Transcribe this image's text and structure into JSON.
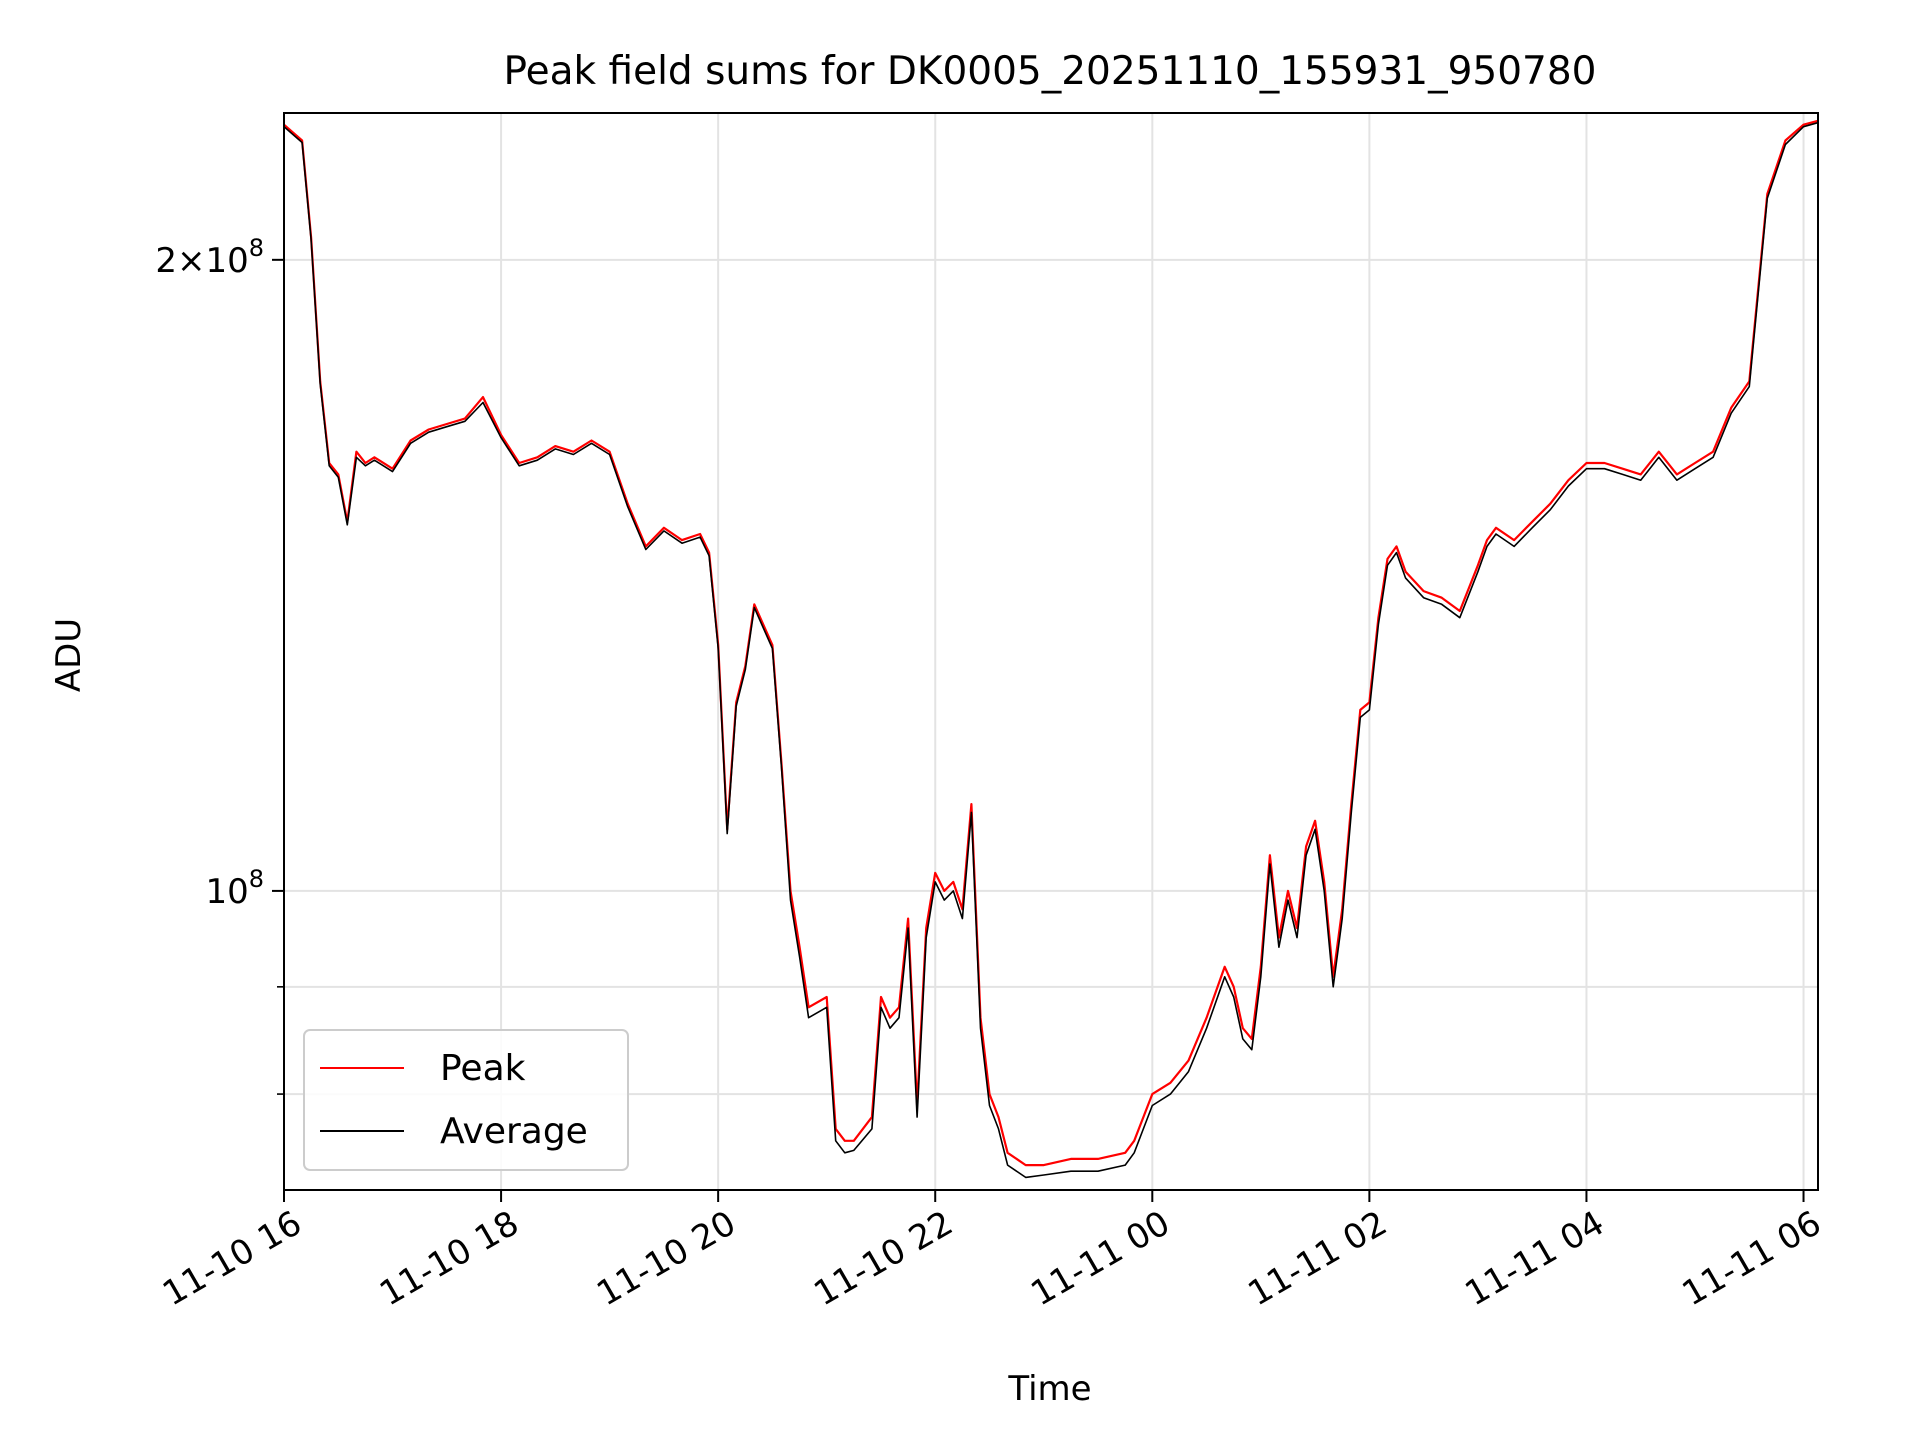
{
  "chart_data": {
    "type": "line",
    "title": "Peak field sums for DK0005_20251110_155931_950780",
    "xlabel": "Time",
    "ylabel": "ADU",
    "yscale": "log",
    "grid": true,
    "legend_position": "lower-left",
    "xlim": [
      "2025-11-10 16:00",
      "2025-11-11 06:08"
    ],
    "ylim": [
      72000000,
      235000000
    ],
    "x_ticks": [
      {
        "value": "2025-11-10 16:00",
        "label": "11-10 16"
      },
      {
        "value": "2025-11-10 18:00",
        "label": "11-10 18"
      },
      {
        "value": "2025-11-10 20:00",
        "label": "11-10 20"
      },
      {
        "value": "2025-11-10 22:00",
        "label": "11-10 22"
      },
      {
        "value": "2025-11-11 00:00",
        "label": "11-11 00"
      },
      {
        "value": "2025-11-11 02:00",
        "label": "11-11 02"
      },
      {
        "value": "2025-11-11 04:00",
        "label": "11-11 04"
      },
      {
        "value": "2025-11-11 06:00",
        "label": "11-11 06"
      }
    ],
    "y_major_ticks": [
      {
        "value": 100000000,
        "base": "10",
        "exp": "8",
        "coef": ""
      },
      {
        "value": 200000000,
        "base": "10",
        "exp": "8",
        "coef": "2"
      }
    ],
    "y_minor_ticks": [
      80000000,
      90000000
    ],
    "series": [
      {
        "name": "Peak",
        "color": "#ff0000",
        "x": [
          "2025-11-10 16:00",
          "2025-11-10 16:10",
          "2025-11-10 16:15",
          "2025-11-10 16:20",
          "2025-11-10 16:25",
          "2025-11-10 16:30",
          "2025-11-10 16:35",
          "2025-11-10 16:40",
          "2025-11-10 16:45",
          "2025-11-10 16:50",
          "2025-11-10 17:00",
          "2025-11-10 17:10",
          "2025-11-10 17:20",
          "2025-11-10 17:30",
          "2025-11-10 17:40",
          "2025-11-10 17:50",
          "2025-11-10 18:00",
          "2025-11-10 18:10",
          "2025-11-10 18:20",
          "2025-11-10 18:30",
          "2025-11-10 18:40",
          "2025-11-10 18:50",
          "2025-11-10 19:00",
          "2025-11-10 19:10",
          "2025-11-10 19:20",
          "2025-11-10 19:30",
          "2025-11-10 19:40",
          "2025-11-10 19:50",
          "2025-11-10 19:55",
          "2025-11-10 20:00",
          "2025-11-10 20:05",
          "2025-11-10 20:10",
          "2025-11-10 20:15",
          "2025-11-10 20:20",
          "2025-11-10 20:30",
          "2025-11-10 20:35",
          "2025-11-10 20:40",
          "2025-11-10 20:45",
          "2025-11-10 20:50",
          "2025-11-10 21:00",
          "2025-11-10 21:05",
          "2025-11-10 21:10",
          "2025-11-10 21:15",
          "2025-11-10 21:25",
          "2025-11-10 21:30",
          "2025-11-10 21:35",
          "2025-11-10 21:40",
          "2025-11-10 21:45",
          "2025-11-10 21:50",
          "2025-11-10 21:55",
          "2025-11-10 22:00",
          "2025-11-10 22:05",
          "2025-11-10 22:10",
          "2025-11-10 22:15",
          "2025-11-10 22:20",
          "2025-11-10 22:25",
          "2025-11-10 22:30",
          "2025-11-10 22:35",
          "2025-11-10 22:40",
          "2025-11-10 22:50",
          "2025-11-10 23:00",
          "2025-11-10 23:15",
          "2025-11-10 23:30",
          "2025-11-10 23:45",
          "2025-11-10 23:50",
          "2025-11-11 00:00",
          "2025-11-11 00:10",
          "2025-11-11 00:20",
          "2025-11-11 00:30",
          "2025-11-11 00:40",
          "2025-11-11 00:45",
          "2025-11-11 00:50",
          "2025-11-11 00:55",
          "2025-11-11 01:00",
          "2025-11-11 01:05",
          "2025-11-11 01:10",
          "2025-11-11 01:15",
          "2025-11-11 01:20",
          "2025-11-11 01:25",
          "2025-11-11 01:30",
          "2025-11-11 01:35",
          "2025-11-11 01:40",
          "2025-11-11 01:45",
          "2025-11-11 01:50",
          "2025-11-11 01:55",
          "2025-11-11 02:00",
          "2025-11-11 02:05",
          "2025-11-11 02:10",
          "2025-11-11 02:15",
          "2025-11-11 02:20",
          "2025-11-11 02:30",
          "2025-11-11 02:40",
          "2025-11-11 02:50",
          "2025-11-11 03:00",
          "2025-11-11 03:05",
          "2025-11-11 03:10",
          "2025-11-11 03:20",
          "2025-11-11 03:30",
          "2025-11-11 03:40",
          "2025-11-11 03:50",
          "2025-11-11 04:00",
          "2025-11-11 04:10",
          "2025-11-11 04:20",
          "2025-11-11 04:30",
          "2025-11-11 04:40",
          "2025-11-11 04:50",
          "2025-11-11 05:00",
          "2025-11-11 05:10",
          "2025-11-11 05:20",
          "2025-11-11 05:30",
          "2025-11-11 05:40",
          "2025-11-11 05:50",
          "2025-11-11 06:00",
          "2025-11-11 06:08"
        ],
        "values": [
          232000000,
          228000000,
          205000000,
          175000000,
          160000000,
          158000000,
          150000000,
          162000000,
          160000000,
          161000000,
          159000000,
          164000000,
          166000000,
          167000000,
          168000000,
          172000000,
          165000000,
          160000000,
          161000000,
          163000000,
          162000000,
          164000000,
          162000000,
          153000000,
          146000000,
          149000000,
          147000000,
          148000000,
          145000000,
          131000000,
          107000000,
          123000000,
          128000000,
          137000000,
          131000000,
          115000000,
          100000000,
          94000000,
          88000000,
          89000000,
          77000000,
          76000000,
          76000000,
          78000000,
          89000000,
          87000000,
          88000000,
          97000000,
          79000000,
          96000000,
          102000000,
          100000000,
          101000000,
          98000000,
          110000000,
          87000000,
          80000000,
          78000000,
          75000000,
          74000000,
          74000000,
          74500000,
          74500000,
          75000000,
          76000000,
          80000000,
          81000000,
          83000000,
          87000000,
          92000000,
          90000000,
          86000000,
          85000000,
          92000000,
          104000000,
          95000000,
          100000000,
          96000000,
          105000000,
          108000000,
          101000000,
          91000000,
          98000000,
          110000000,
          122000000,
          123000000,
          135000000,
          144000000,
          146000000,
          142000000,
          139000000,
          138000000,
          136000000,
          143000000,
          147000000,
          149000000,
          147000000,
          150000000,
          153000000,
          157000000,
          160000000,
          160000000,
          159000000,
          158000000,
          162000000,
          158000000,
          160000000,
          162000000,
          170000000,
          175000000,
          215000000,
          228000000,
          232000000,
          233000000
        ]
      },
      {
        "name": "Average",
        "color": "#000000",
        "x": [
          "2025-11-10 16:00",
          "2025-11-10 16:10",
          "2025-11-10 16:15",
          "2025-11-10 16:20",
          "2025-11-10 16:25",
          "2025-11-10 16:30",
          "2025-11-10 16:35",
          "2025-11-10 16:40",
          "2025-11-10 16:45",
          "2025-11-10 16:50",
          "2025-11-10 17:00",
          "2025-11-10 17:10",
          "2025-11-10 17:20",
          "2025-11-10 17:30",
          "2025-11-10 17:40",
          "2025-11-10 17:50",
          "2025-11-10 18:00",
          "2025-11-10 18:10",
          "2025-11-10 18:20",
          "2025-11-10 18:30",
          "2025-11-10 18:40",
          "2025-11-10 18:50",
          "2025-11-10 19:00",
          "2025-11-10 19:10",
          "2025-11-10 19:20",
          "2025-11-10 19:30",
          "2025-11-10 19:40",
          "2025-11-10 19:50",
          "2025-11-10 19:55",
          "2025-11-10 20:00",
          "2025-11-10 20:05",
          "2025-11-10 20:10",
          "2025-11-10 20:15",
          "2025-11-10 20:20",
          "2025-11-10 20:30",
          "2025-11-10 20:35",
          "2025-11-10 20:40",
          "2025-11-10 20:45",
          "2025-11-10 20:50",
          "2025-11-10 21:00",
          "2025-11-10 21:05",
          "2025-11-10 21:10",
          "2025-11-10 21:15",
          "2025-11-10 21:25",
          "2025-11-10 21:30",
          "2025-11-10 21:35",
          "2025-11-10 21:40",
          "2025-11-10 21:45",
          "2025-11-10 21:50",
          "2025-11-10 21:55",
          "2025-11-10 22:00",
          "2025-11-10 22:05",
          "2025-11-10 22:10",
          "2025-11-10 22:15",
          "2025-11-10 22:20",
          "2025-11-10 22:25",
          "2025-11-10 22:30",
          "2025-11-10 22:35",
          "2025-11-10 22:40",
          "2025-11-10 22:50",
          "2025-11-10 23:00",
          "2025-11-10 23:15",
          "2025-11-10 23:30",
          "2025-11-10 23:45",
          "2025-11-10 23:50",
          "2025-11-11 00:00",
          "2025-11-11 00:10",
          "2025-11-11 00:20",
          "2025-11-11 00:30",
          "2025-11-11 00:40",
          "2025-11-11 00:45",
          "2025-11-11 00:50",
          "2025-11-11 00:55",
          "2025-11-11 01:00",
          "2025-11-11 01:05",
          "2025-11-11 01:10",
          "2025-11-11 01:15",
          "2025-11-11 01:20",
          "2025-11-11 01:25",
          "2025-11-11 01:30",
          "2025-11-11 01:35",
          "2025-11-11 01:40",
          "2025-11-11 01:45",
          "2025-11-11 01:50",
          "2025-11-11 01:55",
          "2025-11-11 02:00",
          "2025-11-11 02:05",
          "2025-11-11 02:10",
          "2025-11-11 02:15",
          "2025-11-11 02:20",
          "2025-11-11 02:30",
          "2025-11-11 02:40",
          "2025-11-11 02:50",
          "2025-11-11 03:00",
          "2025-11-11 03:05",
          "2025-11-11 03:10",
          "2025-11-11 03:20",
          "2025-11-11 03:30",
          "2025-11-11 03:40",
          "2025-11-11 03:50",
          "2025-11-11 04:00",
          "2025-11-11 04:10",
          "2025-11-11 04:20",
          "2025-11-11 04:30",
          "2025-11-11 04:40",
          "2025-11-11 04:50",
          "2025-11-11 05:00",
          "2025-11-11 05:10",
          "2025-11-11 05:20",
          "2025-11-11 05:30",
          "2025-11-11 05:40",
          "2025-11-11 05:50",
          "2025-11-11 06:00",
          "2025-11-11 06:08"
        ],
        "values": [
          231500000,
          227500000,
          204500000,
          174500000,
          159500000,
          157500000,
          149500000,
          161000000,
          159500000,
          160500000,
          158500000,
          163500000,
          165500000,
          166500000,
          167500000,
          171000000,
          164500000,
          159500000,
          160500000,
          162500000,
          161500000,
          163500000,
          161500000,
          152500000,
          145500000,
          148500000,
          146500000,
          147500000,
          144500000,
          130500000,
          106500000,
          122500000,
          127500000,
          136500000,
          130500000,
          114500000,
          99000000,
          93000000,
          87000000,
          88000000,
          76000000,
          75000000,
          75200000,
          77000000,
          88000000,
          86000000,
          87000000,
          96000000,
          78000000,
          95000000,
          101000000,
          99000000,
          100000000,
          97000000,
          109000000,
          86000000,
          79000000,
          77000000,
          74000000,
          73000000,
          73200000,
          73500000,
          73500000,
          74000000,
          75000000,
          79000000,
          80000000,
          82000000,
          86000000,
          91000000,
          89000000,
          85000000,
          84000000,
          91000000,
          103000000,
          94000000,
          99000000,
          95000000,
          104000000,
          107000000,
          100000000,
          90000000,
          97000000,
          109000000,
          121000000,
          122000000,
          134000000,
          143000000,
          145000000,
          141000000,
          138000000,
          137000000,
          135000000,
          142000000,
          146000000,
          148000000,
          146000000,
          149000000,
          152000000,
          156000000,
          159000000,
          159000000,
          158000000,
          157000000,
          161000000,
          157000000,
          159000000,
          161000000,
          169000000,
          174000000,
          214000000,
          227000000,
          231500000,
          232500000
        ]
      }
    ]
  }
}
